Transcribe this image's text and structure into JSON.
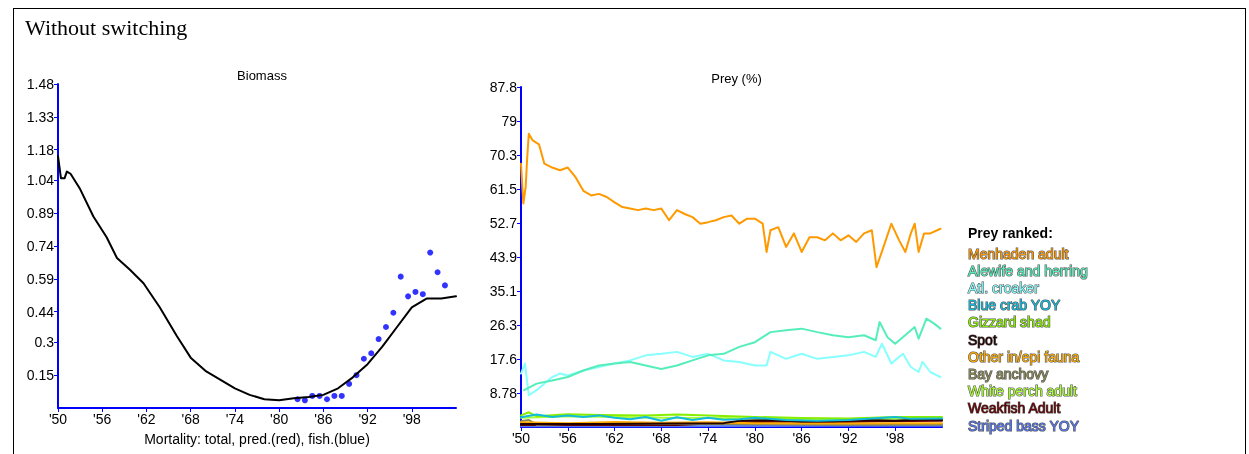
{
  "chart_data": [
    {
      "type": "line",
      "title": "Biomass",
      "xlabel": "Mortality: total, pred.(red), fish.(blue)",
      "annotations": [
        "Without switching"
      ],
      "xlim": [
        1950,
        2004
      ],
      "xticks": [
        {
          "value": 1950,
          "label": "'50"
        },
        {
          "value": 1956,
          "label": "'56"
        },
        {
          "value": 1962,
          "label": "'62"
        },
        {
          "value": 1968,
          "label": "'68"
        },
        {
          "value": 1974,
          "label": "'74"
        },
        {
          "value": 1980,
          "label": "'80"
        },
        {
          "value": 1986,
          "label": "'86"
        },
        {
          "value": 1992,
          "label": "'92"
        },
        {
          "value": 1998,
          "label": "'98"
        }
      ],
      "ylim": [
        0,
        1.48
      ],
      "yticks": [
        0.15,
        0.3,
        0.44,
        0.59,
        0.74,
        0.89,
        1.04,
        1.18,
        1.33,
        1.48
      ],
      "grid": false,
      "legend": false,
      "marker": "none",
      "line_style": "solid",
      "series": [
        {
          "color": "#000000",
          "x": [
            1950,
            1950.4,
            1950.9,
            1951.2,
            1951.7,
            1953,
            1954.8,
            1956.6,
            1958,
            1959.8,
            1961.6,
            1963.8,
            1966.1,
            1968,
            1970,
            1972,
            1974,
            1976,
            1978,
            1980,
            1982,
            1984,
            1986,
            1988,
            1990,
            1992,
            1994,
            1996,
            1998,
            2000,
            2002,
            2004
          ],
          "values": [
            1.15,
            1.05,
            1.05,
            1.08,
            1.07,
            1.0,
            0.875,
            0.78,
            0.685,
            0.63,
            0.57,
            0.46,
            0.33,
            0.23,
            0.17,
            0.13,
            0.09,
            0.06,
            0.04,
            0.035,
            0.045,
            0.05,
            0.06,
            0.09,
            0.14,
            0.2,
            0.28,
            0.37,
            0.46,
            0.5,
            0.5,
            0.51
          ]
        },
        {
          "type": "scatter",
          "color": "#0000ff",
          "marker": "circle",
          "x": [
            1982.5,
            1983.5,
            1984.5,
            1985.5,
            1986.5,
            1987.5,
            1988.5,
            1989.5,
            1990.5,
            1991.5,
            1992.5,
            1993.5,
            1994.5,
            1995.5,
            1996.5,
            1997.5,
            1998.5,
            1999.5,
            2000.5,
            2001.5,
            2002.5
          ],
          "values": [
            0.04,
            0.035,
            0.055,
            0.055,
            0.04,
            0.055,
            0.055,
            0.11,
            0.15,
            0.225,
            0.25,
            0.315,
            0.37,
            0.435,
            0.6,
            0.51,
            0.53,
            0.52,
            0.71,
            0.62,
            0.56
          ]
        }
      ]
    },
    {
      "type": "line",
      "title": "Prey (%)",
      "legend_title": "Prey ranked:",
      "xlim": [
        1950,
        2004
      ],
      "xticks": [
        {
          "value": 1950,
          "label": "'50"
        },
        {
          "value": 1956,
          "label": "'56"
        },
        {
          "value": 1962,
          "label": "'62"
        },
        {
          "value": 1968,
          "label": "'68"
        },
        {
          "value": 1974,
          "label": "'74"
        },
        {
          "value": 1980,
          "label": "'80"
        },
        {
          "value": 1986,
          "label": "'86"
        },
        {
          "value": 1992,
          "label": "'92"
        },
        {
          "value": 1998,
          "label": "'98"
        }
      ],
      "ylim": [
        0,
        87.8
      ],
      "yticks": [
        8.78,
        17.6,
        26.3,
        35.1,
        43.9,
        52.7,
        61.5,
        70.3,
        79,
        87.8
      ],
      "grid": false,
      "legend": "right",
      "marker": "none",
      "line_style": "solid",
      "series": [
        {
          "name": "Menhaden adult",
          "color": "#ff9900",
          "x": [
            1950,
            1950.3,
            1950.6,
            1950.8,
            1951,
            1951.5,
            1952.3,
            1953,
            1954,
            1955,
            1956,
            1957,
            1958,
            1959,
            1960,
            1961,
            1962,
            1963,
            1964,
            1965,
            1966,
            1967,
            1968,
            1969,
            1970,
            1971,
            1972,
            1973,
            1974,
            1975,
            1976,
            1977,
            1978,
            1979,
            1980,
            1981,
            1981.5,
            1982,
            1983,
            1984,
            1985,
            1986,
            1987,
            1988,
            1989,
            1990,
            1991,
            1992,
            1993,
            1994,
            1995,
            1995.6,
            1996.5,
            1997.5,
            1998.5,
            1999.3,
            2000,
            2000.5,
            2001,
            2001.7,
            2002.5,
            2003.8
          ],
          "values": [
            68,
            57.7,
            62,
            69.7,
            75.7,
            74,
            73,
            68,
            67,
            66.3,
            67,
            64.5,
            61,
            59.8,
            60.2,
            59.4,
            58,
            56.8,
            56.4,
            56,
            56.4,
            56,
            56.4,
            53.4,
            56,
            55,
            54.2,
            52.5,
            52.9,
            53.4,
            54.2,
            54.6,
            52.5,
            53.8,
            53.8,
            52.5,
            45.2,
            50.8,
            51.6,
            46.5,
            50,
            45.2,
            49,
            49,
            48.2,
            50,
            48.2,
            49.5,
            47.8,
            50,
            50.8,
            41.3,
            46.5,
            52.5,
            48.2,
            45.2,
            50,
            52.5,
            45.2,
            50,
            50,
            51.2
          ]
        },
        {
          "name": "Alewife and herring",
          "color": "#55eebb",
          "x": [
            1950.4,
            1952,
            1954,
            1956,
            1958,
            1960,
            1962,
            1964,
            1966,
            1968,
            1970,
            1972,
            1974,
            1976,
            1978,
            1980,
            1981,
            1982,
            1984,
            1986,
            1988,
            1990,
            1992,
            1994,
            1995.5,
            1996,
            1997,
            1998,
            1999.5,
            2000.5,
            2001,
            2002,
            2003,
            2003.8
          ],
          "values": [
            9.5,
            11.2,
            12,
            12.9,
            14.6,
            15.9,
            16.4,
            16.8,
            15.9,
            15,
            15.9,
            17.2,
            18.5,
            18.9,
            20.7,
            21.9,
            23.2,
            24.5,
            25,
            25.4,
            24.5,
            23.7,
            23.2,
            23.7,
            22.4,
            27.1,
            23.2,
            21.5,
            24.1,
            25.8,
            22.8,
            28,
            26.7,
            25.4
          ]
        },
        {
          "name": "Atl. croaker",
          "color": "#88ffff",
          "x": [
            1950,
            1950.5,
            1951,
            1952,
            1954,
            1955,
            1956,
            1958,
            1960,
            1962,
            1964,
            1966,
            1968,
            1970,
            1972,
            1974,
            1976,
            1978,
            1980,
            1981.5,
            1982,
            1984,
            1986,
            1988,
            1990,
            1992,
            1994,
            1995.5,
            1996.3,
            1997.5,
            1999,
            2000,
            2001,
            2001.5,
            2002.5,
            2003.8
          ],
          "values": [
            13.8,
            16.4,
            8.2,
            9.5,
            12.9,
            13.8,
            13.3,
            14.6,
            15.5,
            16.4,
            17.2,
            18.5,
            18.9,
            19.4,
            18.1,
            18.9,
            17.2,
            16.8,
            15.9,
            15.9,
            19.4,
            17.6,
            18.9,
            17.6,
            18.1,
            18.5,
            19.4,
            18.1,
            21.5,
            16.4,
            18.9,
            15.5,
            14.2,
            16.8,
            14.2,
            12.9
          ]
        },
        {
          "name": "Blue crab YOY",
          "color": "#11bbdd",
          "x": [
            1950,
            1952,
            1954,
            1956,
            1958,
            1960,
            1962,
            1964,
            1966,
            1968,
            1970,
            1972,
            1974,
            1976,
            1978,
            1980,
            1984,
            1988,
            1992,
            1996,
            1998,
            2000,
            2004
          ],
          "values": [
            2.5,
            3.2,
            2.6,
            3.0,
            2.6,
            3.0,
            2.4,
            2.0,
            2.6,
            1.6,
            2.5,
            1.8,
            2.4,
            1.9,
            2.0,
            2.4,
            1.8,
            1.6,
            1.8,
            2.3,
            2.6,
            2.1,
            2.2
          ]
        },
        {
          "name": "Gizzard shad",
          "color": "#88ee00",
          "x": [
            1950,
            1951,
            1952,
            1956,
            1960,
            1966,
            1970,
            1974,
            1980,
            1986,
            1992,
            1998,
            2004
          ],
          "values": [
            3.0,
            3.8,
            2.8,
            3.3,
            3.1,
            3.0,
            3.2,
            3.0,
            2.6,
            2.3,
            2.2,
            2.6,
            2.6
          ]
        },
        {
          "name": "Spot",
          "color": "#220000",
          "x": [
            1950,
            1960,
            1970,
            1976,
            1978,
            1982,
            1986,
            1990,
            1994,
            1998,
            2002,
            2004
          ],
          "values": [
            0.8,
            0.8,
            0.9,
            1.0,
            1.6,
            1.8,
            1.4,
            1.5,
            1.8,
            1.6,
            2.0,
            1.8
          ]
        },
        {
          "name": "Other in/epi fauna",
          "color": "#ffaa00",
          "x": [
            1950,
            1956,
            1962,
            1968,
            1974,
            1980,
            1986,
            1992,
            1998,
            2004
          ],
          "values": [
            1.2,
            1.0,
            1.3,
            1.1,
            1.2,
            1.0,
            0.9,
            0.9,
            1.0,
            1.0
          ]
        },
        {
          "name": "Bay anchovy",
          "color": "#888855",
          "x": [
            1950,
            1951,
            1952,
            1956,
            1962,
            1968,
            1974,
            1980,
            1990,
            2004
          ],
          "values": [
            1.5,
            1.8,
            0.6,
            0.8,
            0.9,
            0.8,
            0.8,
            0.7,
            0.6,
            0.6
          ]
        },
        {
          "name": "White perch adult",
          "color": "#aaff33",
          "x": [
            1950,
            1956,
            1962,
            1968,
            1974,
            1980,
            1986,
            1992,
            1998,
            2004
          ],
          "values": [
            2.4,
            2.8,
            2.6,
            2.4,
            2.3,
            2.2,
            2.0,
            2.0,
            2.1,
            2.2
          ]
        },
        {
          "name": "Weakfish Adult",
          "color": "#660000",
          "x": [
            1950,
            1970,
            1978,
            1984,
            1990,
            1996,
            2004
          ],
          "values": [
            0.5,
            0.5,
            1.2,
            1.4,
            1.2,
            1.5,
            1.6
          ]
        },
        {
          "name": "Striped bass YOY",
          "color": "#5577ee",
          "x": [
            1950,
            1970,
            1990,
            2004
          ],
          "values": [
            0.2,
            0.2,
            0.3,
            0.3
          ]
        }
      ]
    }
  ]
}
